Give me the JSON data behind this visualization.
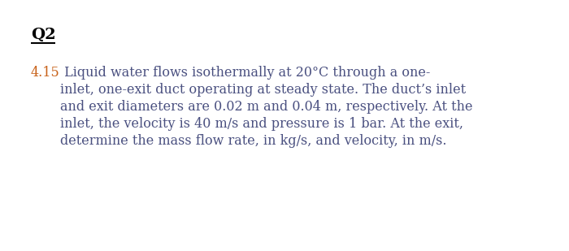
{
  "background_color": "#ffffff",
  "heading_text": "Q2",
  "heading_color": "#000000",
  "heading_fontsize": 14,
  "problem_number": "4.15",
  "problem_number_color": "#c8621a",
  "problem_text_color": "#4a5080",
  "problem_text_fontsize": 11.5,
  "line1": " Liquid water flows isothermally at 20°C through a one-",
  "line2": "inlet, one-exit duct operating at steady state. The duct’s inlet",
  "line3": "and exit diameters are 0.02 m and 0.04 m, respectively. At the",
  "line4": "inlet, the velocity is 40 m/s and pressure is 1 bar. At the exit,",
  "line5": "determine the mass flow rate, in kg/s, and velocity, in m/s."
}
